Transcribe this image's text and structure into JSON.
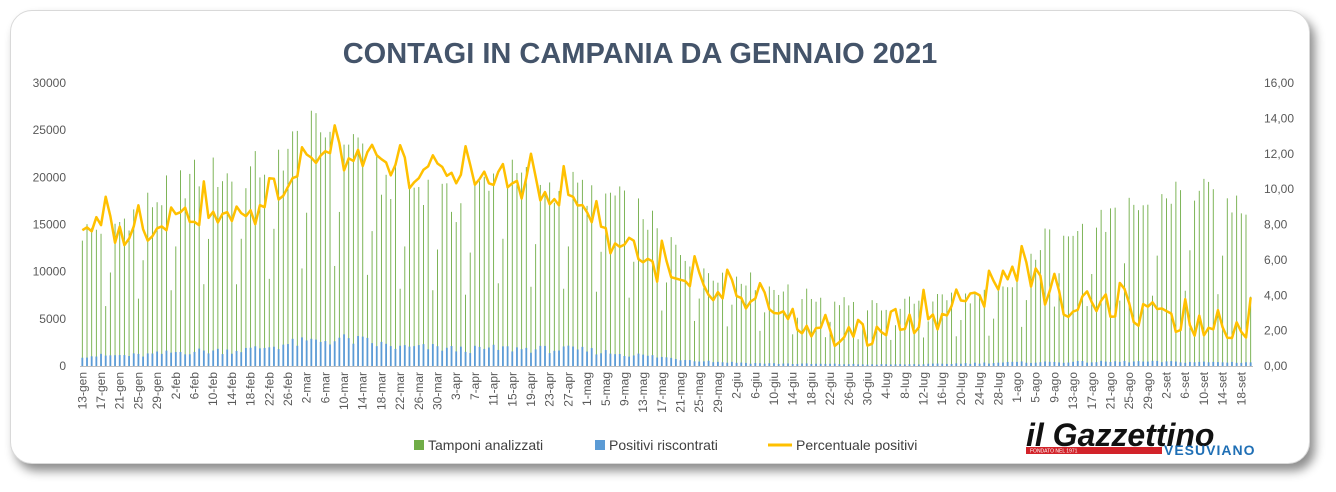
{
  "chart_data": {
    "type": "bar",
    "title": "CONTAGI IN CAMPANIA DA GENNAIO 2021",
    "y_left": {
      "min": 0,
      "max": 30000,
      "ticks": [
        "0",
        "5000",
        "10000",
        "15000",
        "20000",
        "25000",
        "30000"
      ]
    },
    "y_right": {
      "min": 0,
      "max": 16,
      "ticks": [
        "0,00",
        "2,00",
        "4,00",
        "6,00",
        "8,00",
        "10,00",
        "12,00",
        "14,00",
        "16,00"
      ]
    },
    "x_label_every": 4,
    "x_labels": [
      "13-gen",
      "17-gen",
      "21-gen",
      "25-gen",
      "29-gen",
      "2-feb",
      "6-feb",
      "10-feb",
      "14-feb",
      "18-feb",
      "22-feb",
      "26-feb",
      "2-mar",
      "6-mar",
      "10-mar",
      "14-mar",
      "18-mar",
      "22-mar",
      "26-mar",
      "30-mar",
      "3-apr",
      "7-apr",
      "11-apr",
      "15-apr",
      "19-apr",
      "23-apr",
      "27-apr",
      "1-mag",
      "5-mag",
      "9-mag",
      "13-mag",
      "17-mag",
      "21-mag",
      "25-mag",
      "29-mag",
      "2-giu",
      "6-giu",
      "10-giu",
      "14-giu",
      "18-giu",
      "22-giu",
      "26-giu",
      "30-giu",
      "4-lug",
      "8-lug",
      "12-lug",
      "16-lug",
      "20-lug",
      "24-lug",
      "28-lug",
      "1-ago",
      "5-ago",
      "9-ago",
      "13-ago",
      "17-ago",
      "21-ago",
      "25-ago",
      "29-ago",
      "2-set",
      "6-set",
      "10-set",
      "14-set",
      "18-set"
    ],
    "anchors": {
      "tamponi_analizzati": [
        14500,
        15000,
        15500,
        17000,
        18000,
        19500,
        20500,
        20800,
        20500,
        21000,
        22000,
        23500,
        25000,
        25500,
        25000,
        24000,
        20000,
        19500,
        19500,
        19000,
        17000,
        19000,
        21000,
        20500,
        20000,
        19500,
        19500,
        19000,
        18500,
        17500,
        16500,
        14000,
        12500,
        11000,
        10000,
        10000,
        9000,
        8500,
        8000,
        7500,
        7200,
        7000,
        6500,
        6500,
        6800,
        7200,
        7500,
        7500,
        7500,
        7800,
        9000,
        12500,
        15000,
        15500,
        15000,
        16000,
        17000,
        17500,
        18500,
        19000,
        18500,
        18000,
        17500
      ],
      "positivi_riscontrati": [
        1150,
        1100,
        1150,
        1150,
        1300,
        1500,
        1600,
        1650,
        1700,
        1800,
        2100,
        2400,
        2600,
        2800,
        2900,
        2700,
        2300,
        2000,
        2000,
        2000,
        1800,
        1800,
        1900,
        1900,
        1850,
        1800,
        1800,
        1700,
        1500,
        1300,
        1150,
        950,
        750,
        600,
        450,
        380,
        300,
        270,
        250,
        230,
        220,
        200,
        170,
        170,
        180,
        200,
        230,
        280,
        320,
        370,
        400,
        420,
        430,
        440,
        450,
        460,
        480,
        470,
        450,
        430,
        420,
        410,
        400
      ],
      "percentuale_positivi": [
        8.0,
        7.8,
        7.4,
        7.6,
        7.8,
        8.5,
        8.6,
        8.3,
        8.2,
        8.2,
        9.5,
        10.5,
        11.5,
        12.0,
        11.6,
        11.5,
        11.2,
        10.8,
        10.6,
        10.8,
        11.0,
        10.5,
        10.3,
        10.2,
        10.0,
        9.8,
        9.3,
        8.9,
        7.2,
        6.6,
        6.1,
        5.2,
        4.5,
        4.2,
        3.8,
        3.6,
        3.4,
        2.6,
        2.2,
        1.9,
        1.6,
        1.5,
        1.6,
        1.9,
        2.3,
        2.6,
        2.8,
        3.3,
        3.8,
        4.6,
        5.5,
        5.0,
        3.3,
        3.4,
        3.5,
        3.3,
        3.0,
        2.8,
        2.5,
        2.3,
        2.2,
        2.1,
        2.2
      ]
    },
    "series": [
      {
        "name": "Tamponi analizzati",
        "color": "#70ad47",
        "axis": "left",
        "mark": "bar"
      },
      {
        "name": "Positivi riscontrati",
        "color": "#5b9bd5",
        "axis": "left",
        "mark": "bar"
      },
      {
        "name": "Percentuale positivi",
        "color": "#ffc000",
        "axis": "right",
        "mark": "line"
      }
    ],
    "legend_position": "bottom",
    "grid": false
  },
  "logo": {
    "name": "il Gazzettino",
    "sub": "VESUVIANO",
    "tag": "FONDATO NEL 1971"
  }
}
